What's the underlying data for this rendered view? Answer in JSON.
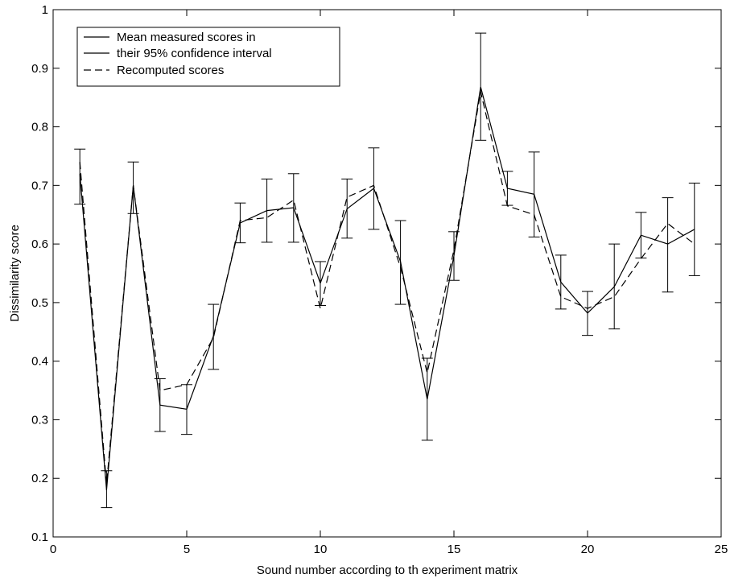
{
  "chart_data": {
    "type": "line",
    "title": "",
    "xlabel": "Sound number according to th experiment matrix",
    "ylabel": "Dissimilarity score",
    "xlim": [
      0,
      25
    ],
    "ylim": [
      0.1,
      1
    ],
    "grid": false,
    "legend_position": "top-left",
    "x_ticks": [
      0,
      5,
      10,
      15,
      20,
      25
    ],
    "x_tick_labels": [
      "0",
      "5",
      "10",
      "15",
      "20",
      "25"
    ],
    "y_ticks": [
      0.1,
      0.2,
      0.3,
      0.4,
      0.5,
      0.6,
      0.7,
      0.8,
      0.9,
      1
    ],
    "y_tick_labels": [
      "0.1",
      "0.2",
      "0.3",
      "0.4",
      "0.5",
      "0.6",
      "0.7",
      "0.8",
      "0.9",
      "1"
    ],
    "x": [
      1,
      2,
      3,
      4,
      5,
      6,
      7,
      8,
      9,
      10,
      11,
      12,
      13,
      14,
      15,
      16,
      17,
      18,
      19,
      20,
      21,
      22,
      23,
      24
    ],
    "series": [
      {
        "name": "Mean measured scores in their 95% confidence interval",
        "legend_lines": [
          "Mean measured scores in",
          "their 95% confidence interval"
        ],
        "style": "solid",
        "color": "#000000",
        "values": [
          0.72,
          0.18,
          0.7,
          0.325,
          0.318,
          0.443,
          0.636,
          0.657,
          0.662,
          0.533,
          0.66,
          0.695,
          0.57,
          0.335,
          0.58,
          0.868,
          0.695,
          0.685,
          0.535,
          0.482,
          0.527,
          0.615,
          0.6,
          0.625
        ],
        "ci_lower": [
          0.668,
          0.15,
          0.652,
          0.28,
          0.275,
          0.386,
          0.602,
          0.603,
          0.603,
          0.495,
          0.61,
          0.625,
          0.497,
          0.265,
          0.538,
          0.777,
          0.666,
          0.612,
          0.489,
          0.444,
          0.455,
          0.576,
          0.518,
          0.546
        ],
        "ci_upper": [
          0.762,
          0.213,
          0.74,
          0.37,
          0.36,
          0.497,
          0.67,
          0.711,
          0.72,
          0.57,
          0.711,
          0.764,
          0.64,
          0.405,
          0.621,
          0.96,
          0.724,
          0.757,
          0.581,
          0.519,
          0.6,
          0.654,
          0.679,
          0.704
        ]
      },
      {
        "name": "Recomputed scores",
        "legend_lines": [
          "Recomputed scores"
        ],
        "style": "dashed",
        "color": "#000000",
        "values": [
          0.74,
          0.19,
          0.7,
          0.35,
          0.36,
          0.44,
          0.64,
          0.645,
          0.675,
          0.49,
          0.68,
          0.7,
          0.56,
          0.38,
          0.59,
          0.86,
          0.665,
          0.65,
          0.51,
          0.49,
          0.51,
          0.575,
          0.635,
          0.6
        ]
      }
    ]
  }
}
